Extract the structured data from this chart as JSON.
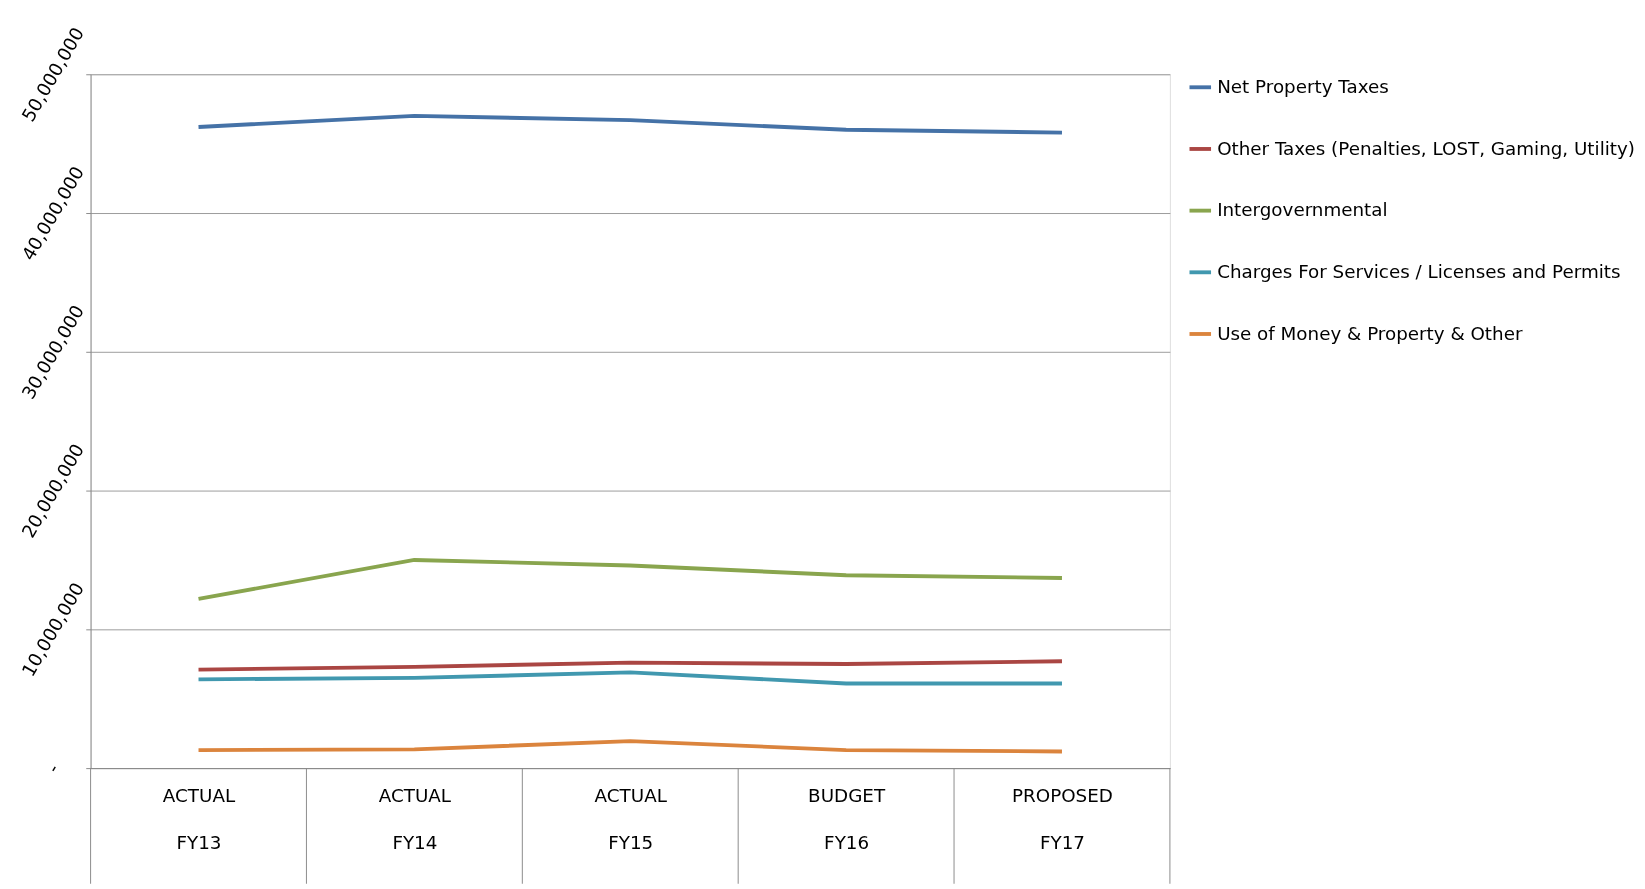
{
  "chart_data": {
    "type": "line",
    "categories": [
      "ACTUAL\nFY13",
      "ACTUAL\nFY14",
      "ACTUAL\nFY15",
      "BUDGET\nFY16",
      "PROPOSED\nFY17"
    ],
    "series": [
      {
        "name": "Net Property Taxes",
        "color": "#4572a7",
        "values": [
          46200000,
          47000000,
          46700000,
          46000000,
          45800000
        ]
      },
      {
        "name": "Other Taxes (Penalties, LOST, Gaming, Utility)",
        "color": "#aa4643",
        "values": [
          7100000,
          7300000,
          7600000,
          7500000,
          7700000
        ]
      },
      {
        "name": "Intergovernmental",
        "color": "#89a54e",
        "values": [
          12200000,
          15000000,
          14600000,
          13900000,
          13700000
        ]
      },
      {
        "name": "Charges For Services / Licenses and Permits",
        "color": "#4198af",
        "values": [
          6400000,
          6500000,
          6900000,
          6100000,
          6100000
        ]
      },
      {
        "name": "Use of Money & Property & Other",
        "color": "#db843d",
        "values": [
          1300000,
          1350000,
          1950000,
          1300000,
          1200000
        ]
      }
    ],
    "ylim": [
      0,
      50000000
    ],
    "yticks": [
      {
        "value": 0,
        "label": "-"
      },
      {
        "value": 10000000,
        "label": "10,000,000"
      },
      {
        "value": 20000000,
        "label": "20,000,000"
      },
      {
        "value": 30000000,
        "label": "30,000,000"
      },
      {
        "value": 40000000,
        "label": "40,000,000"
      },
      {
        "value": 50000000,
        "label": "50,000,000"
      }
    ],
    "grid": "y",
    "legend": "right",
    "marker": "none",
    "line_style": "solid"
  }
}
